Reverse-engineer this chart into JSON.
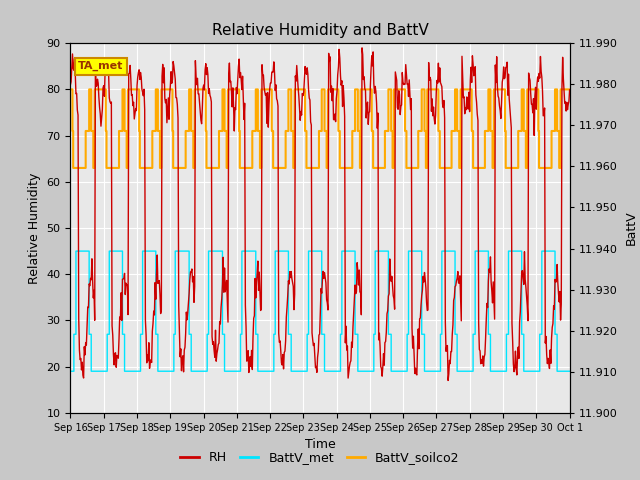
{
  "title": "Relative Humidity and BattV",
  "xlabel": "Time",
  "ylabel_left": "Relative Humidity",
  "ylabel_right": "BattV",
  "ylim_left": [
    10,
    90
  ],
  "ylim_right": [
    11.9,
    11.99
  ],
  "yticks_left": [
    10,
    20,
    30,
    40,
    50,
    60,
    70,
    80,
    90
  ],
  "yticks_right": [
    11.9,
    11.91,
    11.92,
    11.93,
    11.94,
    11.95,
    11.96,
    11.97,
    11.98,
    11.99
  ],
  "xtick_labels": [
    "Sep 16",
    "Sep 17",
    "Sep 18",
    "Sep 19",
    "Sep 20",
    "Sep 21",
    "Sep 22",
    "Sep 23",
    "Sep 24",
    "Sep 25",
    "Sep 26",
    "Sep 27",
    "Sep 28",
    "Sep 29",
    "Sep 30",
    "Oct 1"
  ],
  "color_rh": "#cc0000",
  "color_battv_met": "#00e5ff",
  "color_battv_soilco2": "#ffaa00",
  "fig_bg_color": "#c8c8c8",
  "plot_bg_color": "#e8e8e8",
  "annotation_text": "TA_met",
  "annotation_box_color": "#ffff00",
  "annotation_border_color": "#cc8800",
  "title_fontsize": 11,
  "label_fontsize": 9,
  "tick_fontsize": 8
}
